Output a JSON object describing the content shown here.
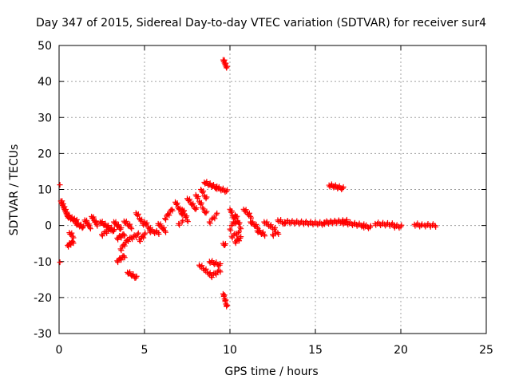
{
  "chart_data": {
    "type": "scatter",
    "title": "Day 347 of 2015, Sidereal Day-to-day VTEC variation (SDTVAR) for receiver sur4",
    "xlabel": "GPS time / hours",
    "ylabel": "SDTVAR / TECUs",
    "xlim": [
      0,
      25
    ],
    "ylim": [
      -30,
      50
    ],
    "xticks": [
      0,
      5,
      10,
      15,
      20,
      25
    ],
    "yticks": [
      -30,
      -20,
      -10,
      0,
      10,
      20,
      30,
      40,
      50
    ],
    "grid": true,
    "marker": "+",
    "color": "#ff0000",
    "series": [
      {
        "name": "SDTVAR",
        "segments": [
          {
            "x0": 0.05,
            "y0": 11.3,
            "x1": 0.05,
            "y1": 11.3,
            "n": 1
          },
          {
            "x0": 0.05,
            "y0": -10.2,
            "x1": 0.05,
            "y1": -10.2,
            "n": 1
          },
          {
            "x0": 0.1,
            "y0": 6.8,
            "x1": 0.5,
            "y1": 2.5,
            "n": 12
          },
          {
            "x0": 0.5,
            "y0": 2.5,
            "x1": 1.0,
            "y1": 1.2,
            "n": 8
          },
          {
            "x0": 0.5,
            "y0": -5.5,
            "x1": 0.8,
            "y1": -4.5,
            "n": 5
          },
          {
            "x0": 0.6,
            "y0": -2.0,
            "x1": 0.8,
            "y1": -3.0,
            "n": 3
          },
          {
            "x0": 1.0,
            "y0": 0.5,
            "x1": 1.4,
            "y1": -0.5,
            "n": 6
          },
          {
            "x0": 1.5,
            "y0": 1.5,
            "x1": 1.8,
            "y1": -0.5,
            "n": 5
          },
          {
            "x0": 1.9,
            "y0": 2.5,
            "x1": 2.2,
            "y1": 0.3,
            "n": 5
          },
          {
            "x0": 2.4,
            "y0": 1.0,
            "x1": 3.2,
            "y1": -1.5,
            "n": 10
          },
          {
            "x0": 2.5,
            "y0": -2.5,
            "x1": 3.0,
            "y1": -1.0,
            "n": 5
          },
          {
            "x0": 3.2,
            "y0": 1.0,
            "x1": 3.6,
            "y1": -1.0,
            "n": 6
          },
          {
            "x0": 3.4,
            "y0": -3.5,
            "x1": 3.8,
            "y1": -2.5,
            "n": 5
          },
          {
            "x0": 3.4,
            "y0": -9.8,
            "x1": 3.8,
            "y1": -8.5,
            "n": 5
          },
          {
            "x0": 3.6,
            "y0": -6.5,
            "x1": 4.0,
            "y1": -4.0,
            "n": 5
          },
          {
            "x0": 3.8,
            "y0": 1.2,
            "x1": 4.2,
            "y1": -0.5,
            "n": 5
          },
          {
            "x0": 4.0,
            "y0": -13.0,
            "x1": 4.5,
            "y1": -14.5,
            "n": 6
          },
          {
            "x0": 4.0,
            "y0": -4.0,
            "x1": 4.6,
            "y1": -2.5,
            "n": 6
          },
          {
            "x0": 4.5,
            "y0": 3.5,
            "x1": 4.9,
            "y1": 0.5,
            "n": 5
          },
          {
            "x0": 4.7,
            "y0": -4.0,
            "x1": 5.0,
            "y1": -2.5,
            "n": 4
          },
          {
            "x0": 5.0,
            "y0": 1.0,
            "x1": 5.3,
            "y1": -1.0,
            "n": 4
          },
          {
            "x0": 5.3,
            "y0": -1.5,
            "x1": 5.8,
            "y1": -2.0,
            "n": 5
          },
          {
            "x0": 5.8,
            "y0": 0.5,
            "x1": 6.2,
            "y1": -1.5,
            "n": 5
          },
          {
            "x0": 6.2,
            "y0": 2.0,
            "x1": 6.6,
            "y1": 4.5,
            "n": 5
          },
          {
            "x0": 6.8,
            "y0": 6.5,
            "x1": 7.2,
            "y1": 3.0,
            "n": 6
          },
          {
            "x0": 7.2,
            "y0": 4.5,
            "x1": 7.5,
            "y1": 1.5,
            "n": 5
          },
          {
            "x0": 7.0,
            "y0": 0.5,
            "x1": 7.2,
            "y1": 1.0,
            "n": 2
          },
          {
            "x0": 7.5,
            "y0": 7.5,
            "x1": 8.0,
            "y1": 4.5,
            "n": 6
          },
          {
            "x0": 8.0,
            "y0": 8.5,
            "x1": 8.4,
            "y1": 5.0,
            "n": 5
          },
          {
            "x0": 8.3,
            "y0": 10.0,
            "x1": 8.6,
            "y1": 7.5,
            "n": 4
          },
          {
            "x0": 8.5,
            "y0": 12.0,
            "x1": 9.2,
            "y1": 10.5,
            "n": 8
          },
          {
            "x0": 9.2,
            "y0": 10.5,
            "x1": 9.8,
            "y1": 9.5,
            "n": 6
          },
          {
            "x0": 8.5,
            "y0": 4.0,
            "x1": 8.6,
            "y1": 3.5,
            "n": 2
          },
          {
            "x0": 8.8,
            "y0": 1.0,
            "x1": 9.2,
            "y1": 3.0,
            "n": 4
          },
          {
            "x0": 8.2,
            "y0": -11.0,
            "x1": 8.8,
            "y1": -13.5,
            "n": 6
          },
          {
            "x0": 8.8,
            "y0": -10.0,
            "x1": 9.4,
            "y1": -11.0,
            "n": 6
          },
          {
            "x0": 8.9,
            "y0": -14.0,
            "x1": 9.4,
            "y1": -12.5,
            "n": 5
          },
          {
            "x0": 9.6,
            "y0": 46.0,
            "x1": 9.8,
            "y1": 43.8,
            "n": 6
          },
          {
            "x0": 9.6,
            "y0": -19.0,
            "x1": 9.8,
            "y1": -22.5,
            "n": 6
          },
          {
            "x0": 9.6,
            "y0": -5.0,
            "x1": 9.7,
            "y1": -5.5,
            "n": 2
          },
          {
            "x0": 10.0,
            "y0": 4.5,
            "x1": 10.3,
            "y1": 1.0,
            "n": 5
          },
          {
            "x0": 10.3,
            "y0": 3.0,
            "x1": 10.6,
            "y1": -0.5,
            "n": 5
          },
          {
            "x0": 10.0,
            "y0": -1.0,
            "x1": 10.2,
            "y1": 1.0,
            "n": 3
          },
          {
            "x0": 10.1,
            "y0": -3.0,
            "x1": 10.5,
            "y1": -2.0,
            "n": 4
          },
          {
            "x0": 10.3,
            "y0": -4.5,
            "x1": 10.6,
            "y1": -3.5,
            "n": 4
          },
          {
            "x0": 10.8,
            "y0": 4.5,
            "x1": 11.2,
            "y1": 2.5,
            "n": 5
          },
          {
            "x0": 11.2,
            "y0": 1.0,
            "x1": 11.6,
            "y1": -0.5,
            "n": 5
          },
          {
            "x0": 11.6,
            "y0": -1.5,
            "x1": 12.0,
            "y1": -2.5,
            "n": 5
          },
          {
            "x0": 12.0,
            "y0": 1.0,
            "x1": 12.6,
            "y1": -1.0,
            "n": 6
          },
          {
            "x0": 12.5,
            "y0": -2.5,
            "x1": 12.8,
            "y1": -2.0,
            "n": 3
          },
          {
            "x0": 12.8,
            "y0": 1.5,
            "x1": 13.2,
            "y1": 0.5,
            "n": 4
          },
          {
            "x0": 13.2,
            "y0": 1.0,
            "x1": 15.5,
            "y1": 0.5,
            "n": 18
          },
          {
            "x0": 15.5,
            "y0": 0.8,
            "x1": 16.8,
            "y1": 1.2,
            "n": 12
          },
          {
            "x0": 15.8,
            "y0": 11.2,
            "x1": 16.6,
            "y1": 10.3,
            "n": 8
          },
          {
            "x0": 16.6,
            "y0": 0.8,
            "x1": 17.8,
            "y1": 0.0,
            "n": 10
          },
          {
            "x0": 17.8,
            "y0": -0.2,
            "x1": 18.2,
            "y1": -0.5,
            "n": 4
          },
          {
            "x0": 18.5,
            "y0": 0.5,
            "x1": 19.6,
            "y1": 0.2,
            "n": 9
          },
          {
            "x0": 19.6,
            "y0": -0.2,
            "x1": 20.0,
            "y1": -0.3,
            "n": 4
          },
          {
            "x0": 20.8,
            "y0": 0.3,
            "x1": 21.2,
            "y1": 0.0,
            "n": 4
          },
          {
            "x0": 21.4,
            "y0": 0.1,
            "x1": 22.0,
            "y1": 0.0,
            "n": 5
          }
        ]
      }
    ]
  }
}
